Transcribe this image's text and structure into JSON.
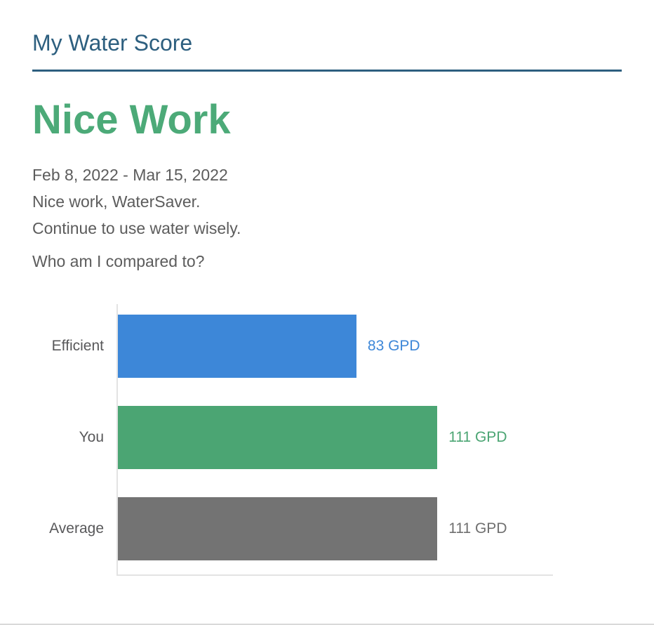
{
  "page": {
    "title": "My Water Score",
    "headline": "Nice Work",
    "date_range": "Feb 8, 2022 - Mar 15, 2022",
    "message_line1": "Nice work, WaterSaver.",
    "message_line2": "Continue to use water wisely.",
    "compare_question": "Who am I compared to?"
  },
  "colors": {
    "header_blue": "#2d5f7f",
    "headline_green": "#4caa78",
    "body_text": "#5c5c5c",
    "axis_line": "#e3e3e3",
    "bottom_border": "#d9d9d9"
  },
  "chart_data": {
    "type": "bar",
    "orientation": "horizontal",
    "unit": "GPD",
    "categories": [
      "Efficient",
      "You",
      "Average"
    ],
    "values": [
      83,
      111,
      111
    ],
    "value_labels": [
      "83 GPD",
      "111 GPD",
      "111 GPD"
    ],
    "bar_colors": [
      "#3d87d8",
      "#4ba573",
      "#737373"
    ],
    "value_label_colors": [
      "#3d87d8",
      "#4ba573",
      "#6f6f6f"
    ],
    "category_label_color": "#58585a",
    "xlim": [
      0,
      151
    ],
    "grid": false,
    "legend": false,
    "title": "",
    "xlabel": "",
    "ylabel": ""
  }
}
